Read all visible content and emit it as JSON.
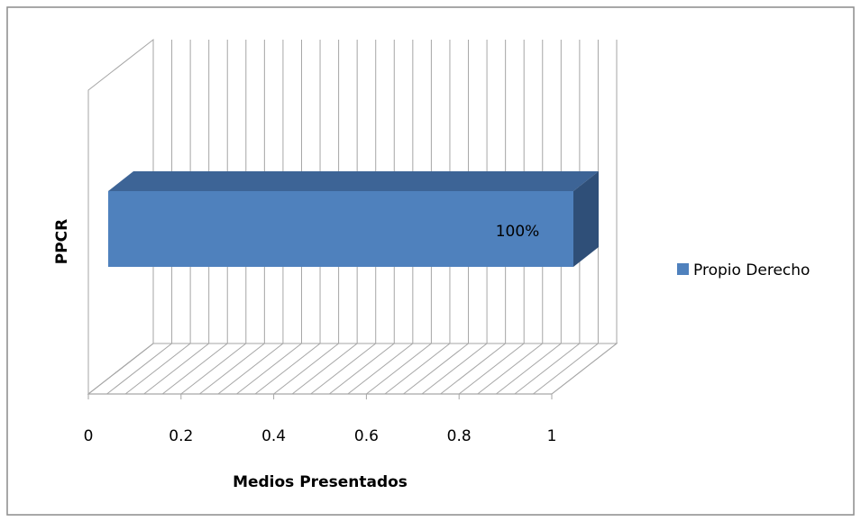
{
  "chart_data": {
    "type": "bar",
    "orientation": "horizontal",
    "three_d": true,
    "categories": [
      "PPCR"
    ],
    "series": [
      {
        "name": "Propio Derecho",
        "values": [
          1
        ],
        "data_labels": [
          "100%"
        ],
        "color": "#4f81bd"
      }
    ],
    "title": "",
    "xlabel": "Medios Presentados",
    "ylabel": "PPCR",
    "xlim": [
      0,
      1
    ],
    "x_ticks": [
      0,
      0.2,
      0.4,
      0.6,
      0.8,
      1
    ],
    "x_tick_labels": [
      "0",
      "0.2",
      "0.4",
      "0.6",
      "0.8",
      "1"
    ],
    "grid": true,
    "legend_position": "right",
    "colors": {
      "bar_front": "#4f81bd",
      "bar_top": "#3d6496",
      "bar_side": "#2f4f78",
      "grid": "#a6a6a6",
      "border": "#8c8c8c"
    }
  }
}
